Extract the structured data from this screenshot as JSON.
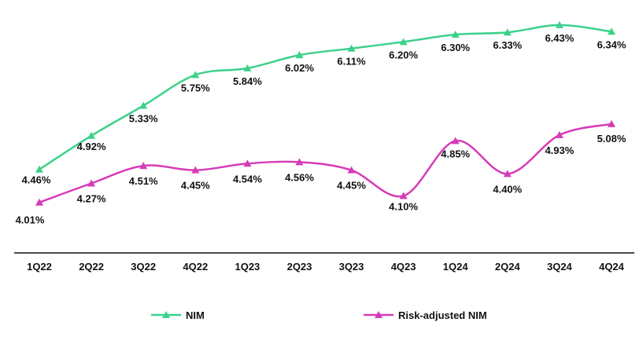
{
  "chart_data": {
    "type": "line",
    "categories": [
      "1Q22",
      "2Q22",
      "3Q22",
      "4Q22",
      "1Q23",
      "2Q23",
      "3Q23",
      "4Q23",
      "1Q24",
      "2Q24",
      "3Q24",
      "4Q24"
    ],
    "series": [
      {
        "name": "NIM",
        "color": "#3cd18b",
        "values": [
          4.46,
          4.92,
          5.33,
          5.75,
          5.84,
          6.02,
          6.11,
          6.2,
          6.3,
          6.33,
          6.43,
          6.34
        ],
        "labels": [
          "4.46%",
          "4.92%",
          "5.33%",
          "5.75%",
          "5.84%",
          "6.02%",
          "6.11%",
          "6.20%",
          "6.30%",
          "6.33%",
          "6.43%",
          "6.34%"
        ]
      },
      {
        "name": "Risk-adjusted NIM",
        "color": "#d63bb8",
        "values": [
          4.01,
          4.27,
          4.51,
          4.45,
          4.54,
          4.56,
          4.45,
          4.1,
          4.85,
          4.4,
          4.93,
          5.08
        ],
        "labels": [
          "4.01%",
          "4.27%",
          "4.51%",
          "4.45%",
          "4.54%",
          "4.56%",
          "4.45%",
          "4.10%",
          "4.85%",
          "4.40%",
          "4.93%",
          "5.08%"
        ]
      }
    ],
    "ylim": [
      3.6,
      6.6
    ],
    "grid": false,
    "legend": "bottom"
  }
}
